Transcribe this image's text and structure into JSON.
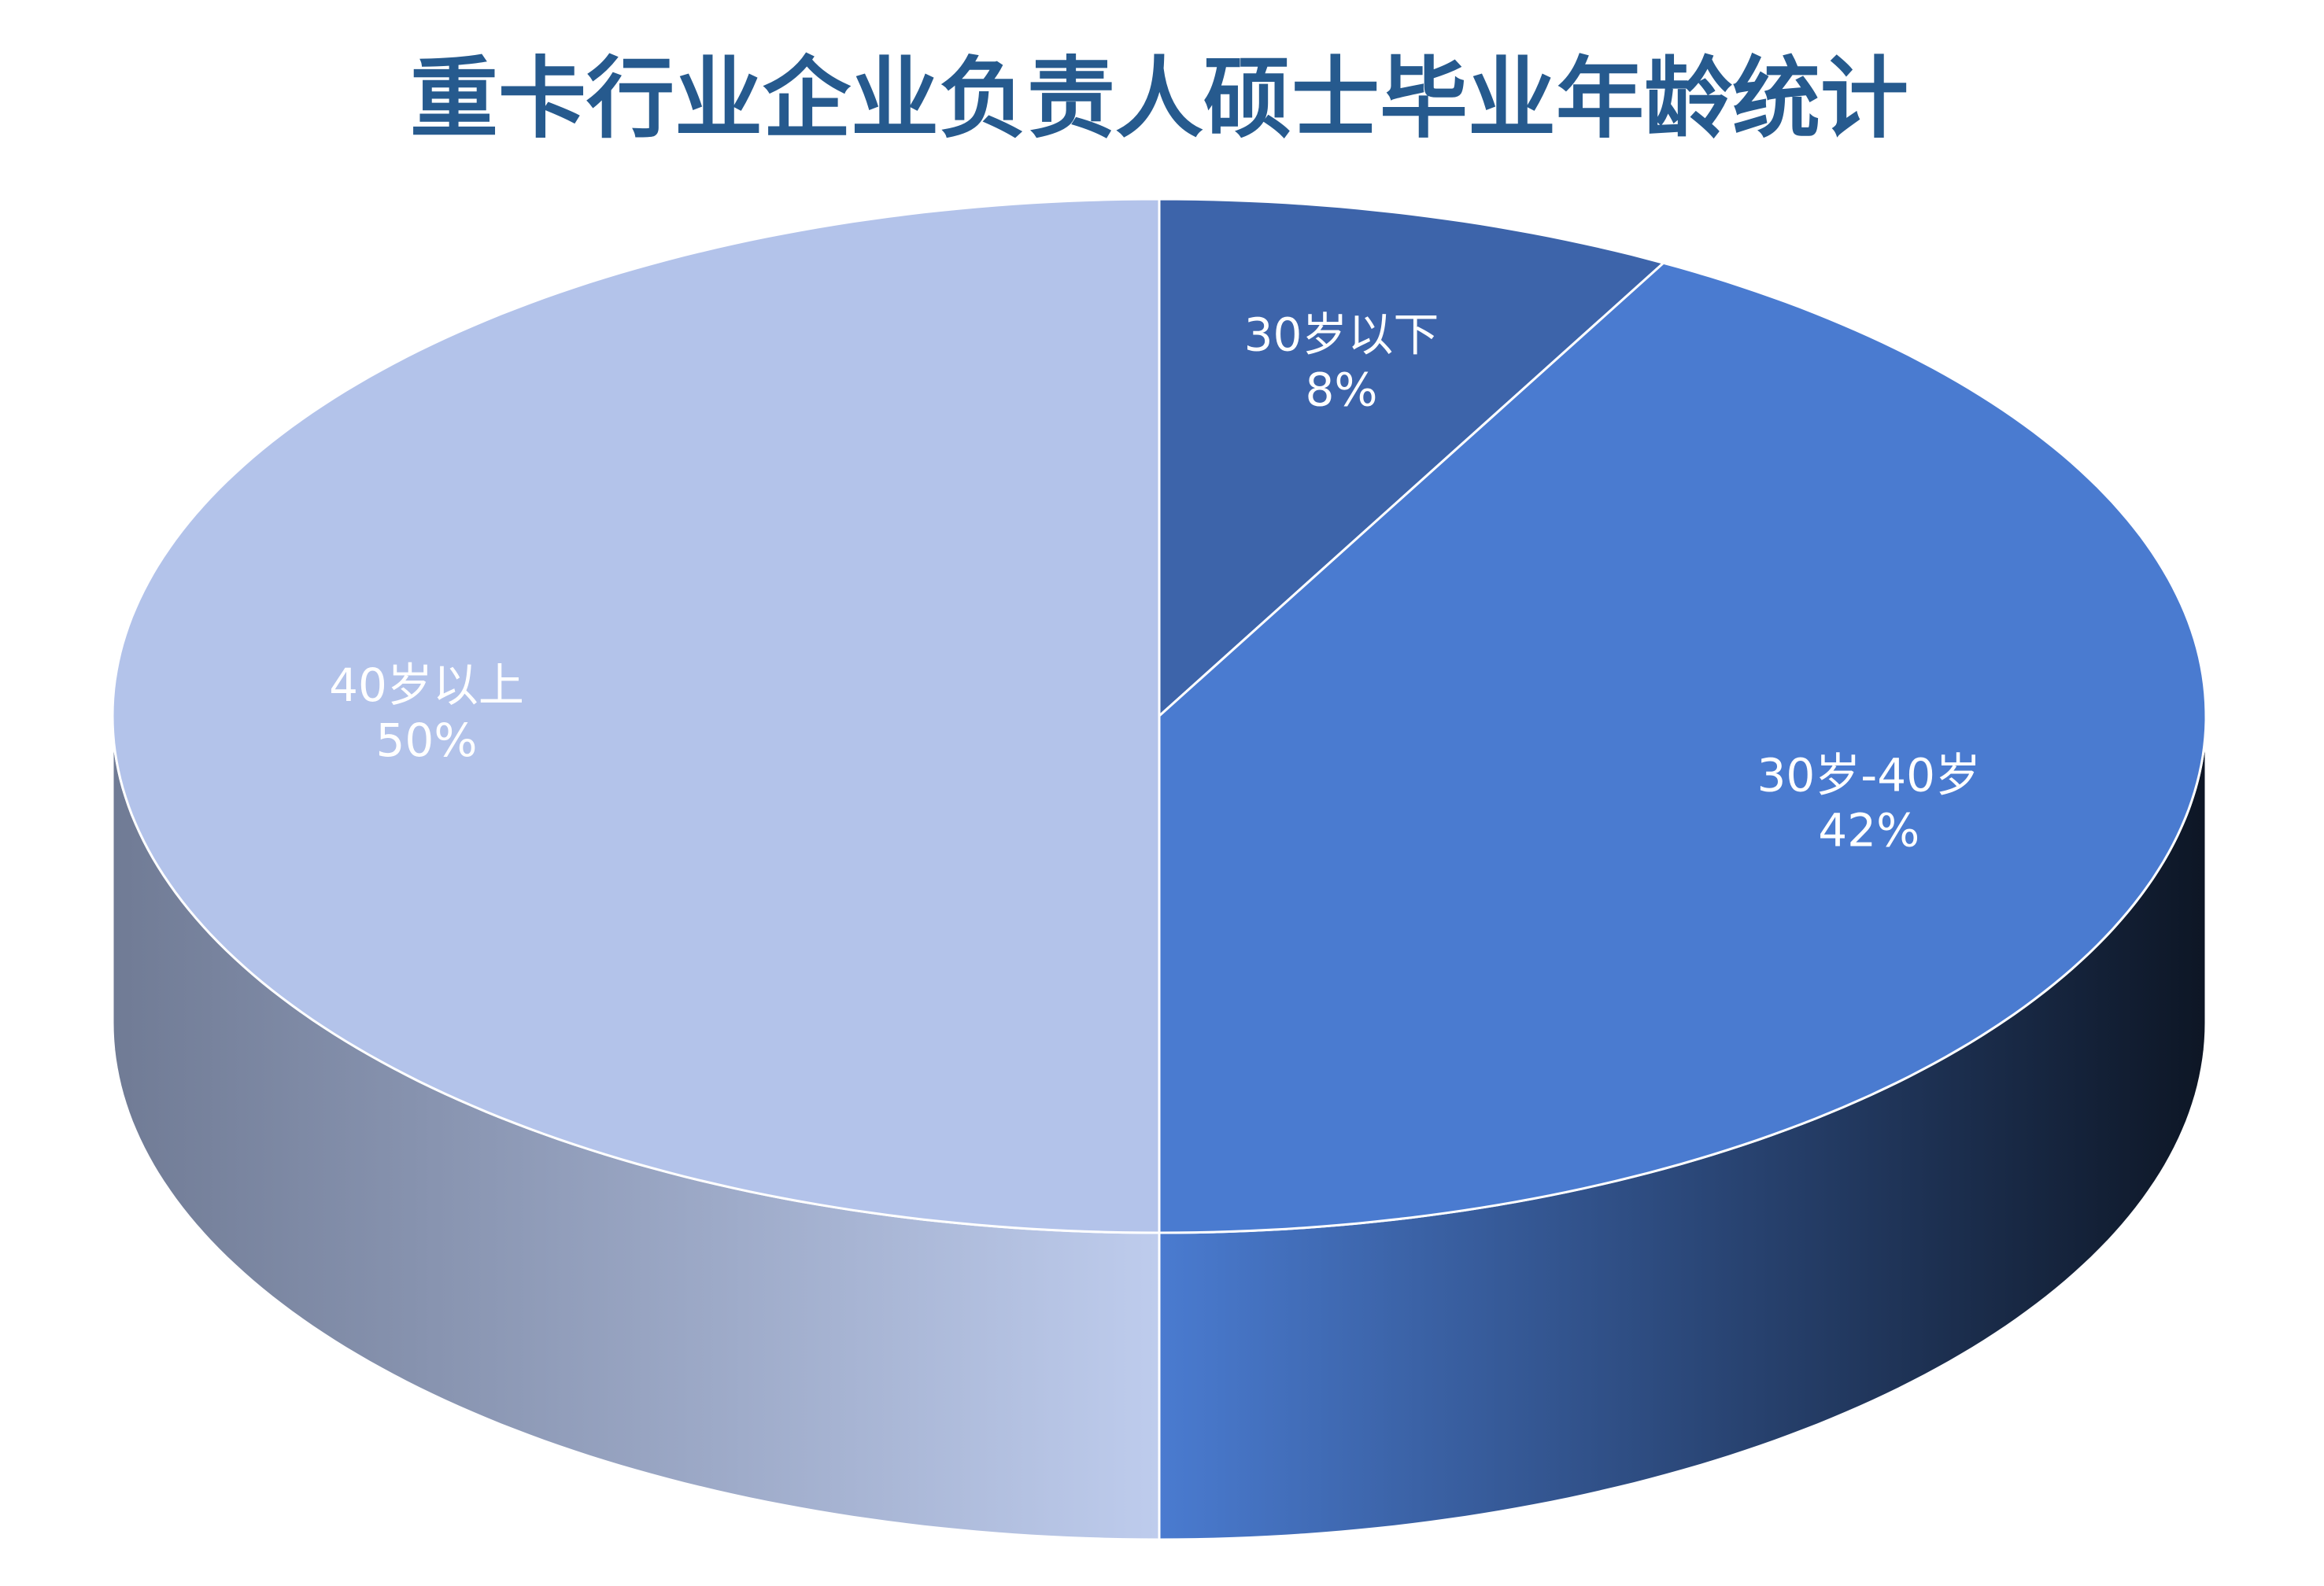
{
  "chart_data": {
    "type": "pie",
    "title": "重卡行业企业负责人硕士毕业年龄统计",
    "categories": [
      "30岁以下",
      "30岁-40岁",
      "40岁以上"
    ],
    "values": [
      8,
      42,
      50
    ],
    "value_labels": [
      "8%",
      "42%",
      "50%"
    ],
    "colors": [
      "#3d64aa",
      "#4a7bd0",
      "#b3c3ea"
    ]
  }
}
